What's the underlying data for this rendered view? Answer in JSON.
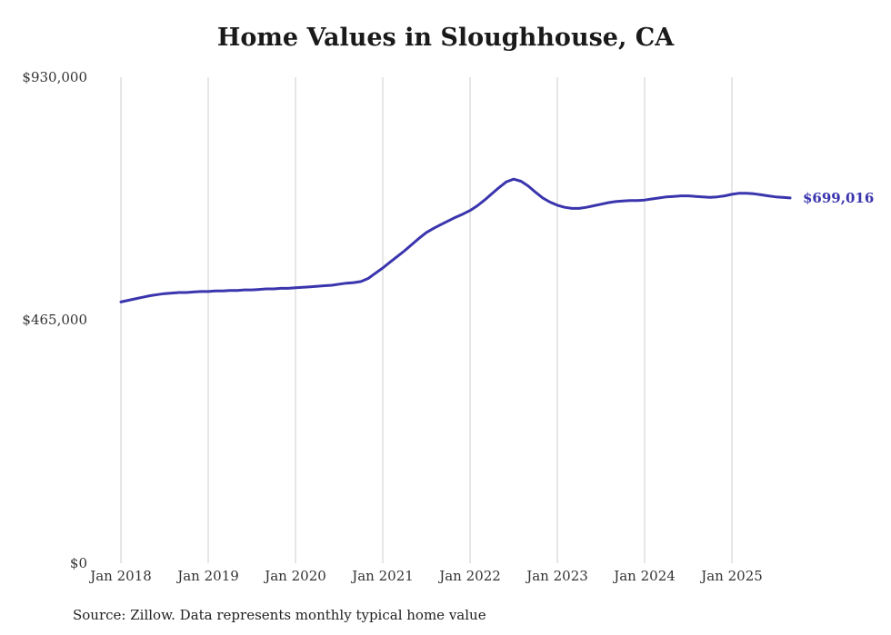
{
  "chart_data": {
    "type": "line",
    "title": "Home Values in Sloughhouse, CA",
    "series_name": "Monthly typical home value",
    "x_start": "Jan 2018",
    "x_end": "Sep 2025",
    "x_tick_labels": [
      "Jan 2018",
      "Jan 2019",
      "Jan 2020",
      "Jan 2021",
      "Jan 2022",
      "Jan 2023",
      "Jan 2024",
      "Jan 2025"
    ],
    "y_ticks": [
      {
        "label": "$930,000",
        "value": 930000
      },
      {
        "label": "$465,000",
        "value": 465000
      },
      {
        "label": "$0",
        "value": 0
      }
    ],
    "ylim": [
      0,
      930000
    ],
    "grid": "vertical-only",
    "legend": "none",
    "line_color": "#3a35ad",
    "gridline_color": "#cccccc",
    "end_value": 699016,
    "end_label": "$699,016",
    "values": [
      500000,
      503000,
      506000,
      509000,
      512000,
      514000,
      516000,
      517000,
      518000,
      518000,
      519000,
      520000,
      520000,
      521000,
      521000,
      522000,
      522000,
      523000,
      523000,
      524000,
      525000,
      525000,
      526000,
      526000,
      527000,
      528000,
      529000,
      530000,
      531000,
      532000,
      534000,
      536000,
      537000,
      539000,
      545000,
      555000,
      565000,
      576000,
      587000,
      598000,
      610000,
      622000,
      633000,
      641000,
      648000,
      655000,
      662000,
      668000,
      675000,
      684000,
      695000,
      707000,
      719000,
      730000,
      735000,
      731000,
      722000,
      710000,
      699000,
      691000,
      685000,
      681000,
      679000,
      679000,
      681000,
      684000,
      687000,
      690000,
      692000,
      693000,
      694000,
      694000,
      695000,
      697000,
      699000,
      701000,
      702000,
      703000,
      703000,
      702000,
      701000,
      700000,
      701000,
      703000,
      706000,
      708000,
      708000,
      707000,
      705000,
      703000,
      701000,
      700000,
      699016
    ]
  },
  "source_note": "Source: Zillow. Data represents monthly typical home value"
}
